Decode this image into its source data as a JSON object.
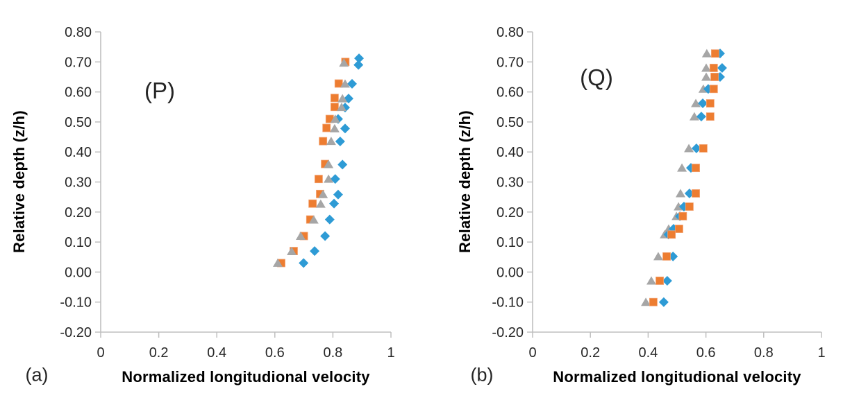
{
  "figure": {
    "background": "#ffffff",
    "axis_color": "#BFBFBF",
    "text_color": "#262626"
  },
  "chart_data": [
    {
      "type": "scatter",
      "panel_label": "(a)",
      "annotation": "(P)",
      "xlabel": "Normalized longitudional velocity",
      "ylabel": "Relative depth (z/h)",
      "xlim": [
        0,
        1
      ],
      "ylim": [
        -0.2,
        0.8
      ],
      "x_ticks": [
        0,
        0.2,
        0.4,
        0.6,
        0.8,
        1
      ],
      "x_tick_labels": [
        "0",
        "0.2",
        "0.4",
        "0.6",
        "0.8",
        "1"
      ],
      "y_ticks": [
        0.8,
        0.7,
        0.6,
        0.5,
        0.4,
        0.3,
        0.2,
        0.1,
        0.0,
        -0.1,
        -0.2
      ],
      "y_tick_labels": [
        "0.80",
        "0.70",
        "0.60",
        "0.50",
        "0.40",
        "0.30",
        "0.20",
        "0.10",
        "0.00",
        "-0.10",
        "-0.20"
      ],
      "grid": false,
      "legend": "none",
      "series": [
        {
          "name": "blue-diamond",
          "marker": "diamond",
          "color": "#2E9BD5",
          "points": [
            [
              0.89,
              0.712
            ],
            [
              0.888,
              0.69
            ],
            [
              0.866,
              0.627
            ],
            [
              0.854,
              0.578
            ],
            [
              0.842,
              0.548
            ],
            [
              0.818,
              0.51
            ],
            [
              0.842,
              0.478
            ],
            [
              0.825,
              0.435
            ],
            [
              0.833,
              0.358
            ],
            [
              0.808,
              0.31
            ],
            [
              0.818,
              0.258
            ],
            [
              0.804,
              0.228
            ],
            [
              0.789,
              0.175
            ],
            [
              0.773,
              0.12
            ],
            [
              0.737,
              0.07
            ],
            [
              0.699,
              0.03
            ]
          ]
        },
        {
          "name": "orange-square",
          "marker": "square",
          "color": "#ED7D31",
          "points": [
            [
              0.843,
              0.7
            ],
            [
              0.82,
              0.628
            ],
            [
              0.806,
              0.58
            ],
            [
              0.806,
              0.55
            ],
            [
              0.789,
              0.51
            ],
            [
              0.778,
              0.48
            ],
            [
              0.766,
              0.436
            ],
            [
              0.773,
              0.36
            ],
            [
              0.751,
              0.31
            ],
            [
              0.756,
              0.26
            ],
            [
              0.73,
              0.228
            ],
            [
              0.722,
              0.175
            ],
            [
              0.7,
              0.12
            ],
            [
              0.665,
              0.07
            ],
            [
              0.622,
              0.03
            ]
          ]
        },
        {
          "name": "gray-triangle",
          "marker": "triangle",
          "color": "#A6A6A6",
          "points": [
            [
              0.838,
              0.697
            ],
            [
              0.842,
              0.627
            ],
            [
              0.833,
              0.578
            ],
            [
              0.83,
              0.549
            ],
            [
              0.808,
              0.51
            ],
            [
              0.806,
              0.478
            ],
            [
              0.794,
              0.436
            ],
            [
              0.785,
              0.359
            ],
            [
              0.785,
              0.31
            ],
            [
              0.766,
              0.259
            ],
            [
              0.758,
              0.227
            ],
            [
              0.734,
              0.174
            ],
            [
              0.689,
              0.12
            ],
            [
              0.658,
              0.069
            ],
            [
              0.61,
              0.03
            ]
          ]
        }
      ]
    },
    {
      "type": "scatter",
      "panel_label": "(b)",
      "annotation": "(Q)",
      "xlabel": "Normalized longitudional velocity",
      "ylabel": "Relative depth (z/h)",
      "xlim": [
        0,
        1
      ],
      "ylim": [
        -0.2,
        0.8
      ],
      "x_ticks": [
        0,
        0.2,
        0.4,
        0.6,
        0.8,
        1
      ],
      "x_tick_labels": [
        "0",
        "0.2",
        "0.4",
        "0.6",
        "0.8",
        "1"
      ],
      "y_ticks": [
        0.8,
        0.7,
        0.6,
        0.5,
        0.4,
        0.3,
        0.2,
        0.1,
        0.0,
        -0.1,
        -0.2
      ],
      "y_tick_labels": [
        "0.80",
        "0.70",
        "0.60",
        "0.50",
        "0.40",
        "0.30",
        "0.20",
        "0.10",
        "0.00",
        "-0.10",
        "-0.20"
      ],
      "grid": false,
      "legend": "none",
      "series": [
        {
          "name": "gray-triangle",
          "marker": "triangle",
          "color": "#A6A6A6",
          "points": [
            [
              0.603,
              0.728
            ],
            [
              0.601,
              0.68
            ],
            [
              0.601,
              0.65
            ],
            [
              0.591,
              0.61
            ],
            [
              0.565,
              0.562
            ],
            [
              0.56,
              0.518
            ],
            [
              0.541,
              0.412
            ],
            [
              0.517,
              0.347
            ],
            [
              0.512,
              0.262
            ],
            [
              0.505,
              0.218
            ],
            [
              0.498,
              0.186
            ],
            [
              0.471,
              0.144
            ],
            [
              0.457,
              0.125
            ],
            [
              0.435,
              0.052
            ],
            [
              0.411,
              -0.029
            ],
            [
              0.392,
              -0.1
            ]
          ]
        },
        {
          "name": "blue-diamond",
          "marker": "diamond",
          "color": "#2E9BD5",
          "points": [
            [
              0.649,
              0.728
            ],
            [
              0.656,
              0.68
            ],
            [
              0.649,
              0.65
            ],
            [
              0.608,
              0.61
            ],
            [
              0.589,
              0.562
            ],
            [
              0.584,
              0.518
            ],
            [
              0.567,
              0.412
            ],
            [
              0.548,
              0.347
            ],
            [
              0.543,
              0.262
            ],
            [
              0.524,
              0.218
            ],
            [
              0.51,
              0.186
            ],
            [
              0.488,
              0.144
            ],
            [
              0.47,
              0.125
            ],
            [
              0.486,
              0.052
            ],
            [
              0.466,
              -0.029
            ],
            [
              0.454,
              -0.1
            ]
          ]
        },
        {
          "name": "orange-square",
          "marker": "square",
          "color": "#ED7D31",
          "points": [
            [
              0.632,
              0.728
            ],
            [
              0.627,
              0.68
            ],
            [
              0.63,
              0.65
            ],
            [
              0.627,
              0.61
            ],
            [
              0.615,
              0.562
            ],
            [
              0.615,
              0.518
            ],
            [
              0.591,
              0.412
            ],
            [
              0.565,
              0.347
            ],
            [
              0.565,
              0.262
            ],
            [
              0.543,
              0.218
            ],
            [
              0.52,
              0.186
            ],
            [
              0.507,
              0.144
            ],
            [
              0.481,
              0.125
            ],
            [
              0.464,
              0.052
            ],
            [
              0.44,
              -0.029
            ],
            [
              0.418,
              -0.1
            ]
          ]
        }
      ]
    }
  ]
}
